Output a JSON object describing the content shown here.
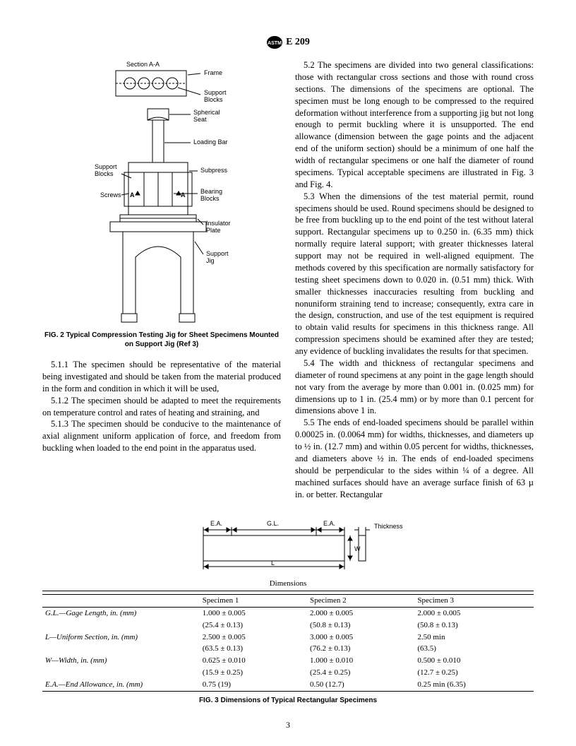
{
  "header": {
    "standard": "E 209"
  },
  "fig2": {
    "label_section": "Section A-A",
    "label_frame": "Frame",
    "label_support_blocks": "Support\nBlocks",
    "label_spherical_seat": "Spherical\nSeat",
    "label_loading_bar": "Loading Bar",
    "label_subpress": "Subpress",
    "label_bearing_blocks": "Bearing\nBlocks",
    "label_screws": "Screws",
    "label_insulator_plate": "Insulator\nPlate",
    "label_support_jig": "Support\nJig",
    "label_a1": "A",
    "label_a2": "A",
    "caption": "FIG. 2 Typical Compression Testing Jig for Sheet Specimens Mounted on Support Jig (Ref 3)"
  },
  "body": {
    "p511": "5.1.1 The specimen should be representative of the material being investigated and should be taken from the material produced in the form and condition in which it will be used,",
    "p512": "5.1.2 The specimen should be adapted to meet the requirements on temperature control and rates of heating and straining, and",
    "p513": "5.1.3 The specimen should be conducive to the maintenance of axial alignment uniform application of force, and freedom from buckling when loaded to the end point in the apparatus used.",
    "p52": "5.2 The specimens are divided into two general classifications: those with rectangular cross sections and those with round cross sections. The dimensions of the specimens are optional. The specimen must be long enough to be compressed to the required deformation without interference from a supporting jig but not long enough to permit buckling where it is unsupported. The end allowance (dimension between the gage points and the adjacent end of the uniform section) should be a minimum of one half the width of rectangular specimens or one half the diameter of round specimens. Typical acceptable specimens are illustrated in Fig. 3 and Fig. 4.",
    "p53": "5.3 When the dimensions of the test material permit, round specimens should be used. Round specimens should be designed to be free from buckling up to the end point of the test without lateral support. Rectangular specimens up to 0.250 in. (6.35 mm) thick normally require lateral support; with greater thicknesses lateral support may not be required in well-aligned equipment. The methods covered by this specification are normally satisfactory for testing sheet specimens down to 0.020 in. (0.51 mm) thick. With smaller thicknesses inaccuracies resulting from buckling and nonuniform straining tend to increase; consequently, extra care in the design, construction, and use of the test equipment is required to obtain valid results for specimens in this thickness range. All compression specimens should be examined after they are tested; any evidence of buckling invalidates the results for that specimen.",
    "p54": "5.4 The width and thickness of rectangular specimens and diameter of round specimens at any point in the gage length should not vary from the average by more than 0.001 in. (0.025 mm) for dimensions up to 1 in. (25.4 mm) or by more than 0.1 percent for dimensions above 1 in.",
    "p55": "5.5 The ends of end-loaded specimens should be parallel within 0.00025 in. (0.0064 mm) for widths, thicknesses, and diameters up to ½ in. (12.7 mm) and within 0.05 percent for widths, thicknesses, and diameters above ½ in. The ends of end-loaded specimens should be perpendicular to the sides within ¼ of a degree. All machined surfaces should have an average surface finish of 63 µ in. or better. Rectangular"
  },
  "fig3": {
    "diagram_labels": {
      "ea": "E.A.",
      "gl": "G.L.",
      "thickness": "Thickness",
      "w": "W",
      "l": "L"
    },
    "table_title": "Dimensions",
    "columns": [
      "",
      "Specimen 1",
      "Specimen 2",
      "Specimen 3"
    ],
    "rows": [
      {
        "label": "G.L.—Gage Length, in. (mm)",
        "s1a": "1.000 ± 0.005",
        "s1b": "(25.4 ± 0.13)",
        "s2a": "2.000 ± 0.005",
        "s2b": "(50.8 ± 0.13)",
        "s3a": "2.000 ± 0.005",
        "s3b": "(50.8 ± 0.13)"
      },
      {
        "label": "L—Uniform Section, in. (mm)",
        "s1a": "2.500 ± 0.005",
        "s1b": "(63.5 ± 0.13)",
        "s2a": "3.000 ± 0.005",
        "s2b": "(76.2 ± 0.13)",
        "s3a": "2.50 min",
        "s3b": "(63.5)"
      },
      {
        "label": "W—Width, in. (mm)",
        "s1a": "0.625 ± 0.010",
        "s1b": "(15.9 ± 0.25)",
        "s2a": "1.000 ± 0.010",
        "s2b": "(25.4 ± 0.25)",
        "s3a": "0.500 ± 0.010",
        "s3b": "(12.7 ± 0.25)"
      },
      {
        "label": "E.A.—End Allowance, in. (mm)",
        "s1a": "0.75 (19)",
        "s1b": "",
        "s2a": "0.50 (12.7)",
        "s2b": "",
        "s3a": "0.25 min (6.35)",
        "s3b": ""
      }
    ],
    "caption": "FIG. 3 Dimensions of Typical Rectangular Specimens"
  },
  "page": "3",
  "style": {
    "bg": "#ffffff",
    "text_color": "#000000",
    "font_body": "Times New Roman",
    "font_caption": "Arial",
    "body_fontsize_pt": 9.5,
    "caption_fontsize_pt": 8,
    "line_color": "#000000",
    "line_width": 1
  }
}
